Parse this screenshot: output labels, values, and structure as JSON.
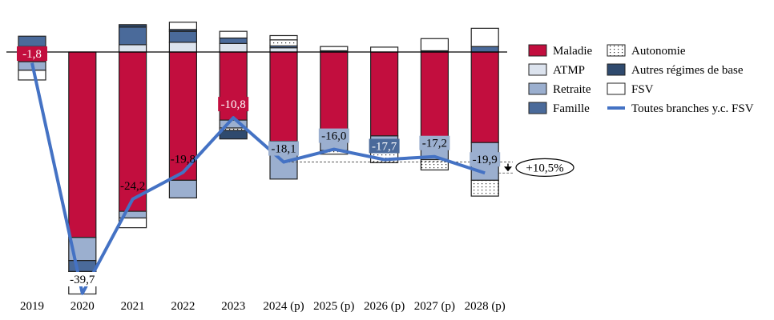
{
  "chart_data": {
    "type": "bar",
    "stacked": true,
    "categories": [
      "2019",
      "2020",
      "2021",
      "2022",
      "2023",
      "2024 (p)",
      "2025 (p)",
      "2026 (p)",
      "2027 (p)",
      "2028 (p)"
    ],
    "ylim": [
      -40,
      6
    ],
    "grid": false,
    "legend_position": "right",
    "series": [
      {
        "name": "Maladie",
        "color": "#C20E3E",
        "values": [
          -1.6,
          -30.5,
          -26.2,
          -21.1,
          -11.2,
          -14.7,
          -13.2,
          -13.8,
          -14.2,
          -14.9
        ]
      },
      {
        "name": "ATMP",
        "color": "#DCE3EE",
        "values": [
          0.9,
          0,
          1.2,
          1.6,
          1.4,
          0.7,
          0,
          0,
          0,
          0
        ]
      },
      {
        "name": "Retraite",
        "color": "#9BAFCF",
        "values": [
          -1.4,
          -3.8,
          -1.1,
          -2.9,
          -1.3,
          -6.2,
          -3.0,
          -2.4,
          -3.5,
          -6.2
        ]
      },
      {
        "name": "Famille",
        "color": "#4A6A9A",
        "values": [
          1.7,
          -1.8,
          2.9,
          1.8,
          0.9,
          0.3,
          0,
          0,
          0,
          0.9
        ]
      },
      {
        "name": "Autonomie",
        "color": "dotted",
        "values": [
          0,
          0,
          0,
          0,
          -0.4,
          1.0,
          -0.6,
          -2.0,
          -1.7,
          -2.6
        ]
      },
      {
        "name": "Autres régimes de base",
        "color": "#2F4A6E",
        "values": [
          0,
          -0.7,
          0.4,
          0.3,
          -1.4,
          0,
          0.2,
          0,
          0.2,
          0
        ]
      },
      {
        "name": "FSV",
        "color": "#FFFFFF",
        "values": [
          -1.6,
          -3.0,
          -1.6,
          1.2,
          1.1,
          0.7,
          0.7,
          0.8,
          2.0,
          3.0
        ]
      }
    ],
    "line": {
      "name": "Toutes branches y.c. FSV",
      "color": "#4472C4",
      "values": [
        -1.8,
        -39.7,
        -24.2,
        -19.8,
        -10.8,
        -18.1,
        -16.0,
        -17.7,
        -17.2,
        -19.9
      ]
    },
    "data_labels": [
      "-1,8",
      "-39,7",
      "-24,2",
      "-19,8",
      "-10,8",
      "-18,1",
      "-16,0",
      "-17,7",
      "-17,2",
      "-19,9"
    ],
    "annotation": {
      "text": "+10,5%",
      "from": "2024 (p)",
      "to": "2028 (p)"
    }
  },
  "legend": {
    "col1": [
      "Maladie",
      "ATMP",
      "Retraite",
      "Famille"
    ],
    "col2": [
      "Autonomie",
      "Autres régimes de base",
      "FSV",
      "Toutes branches y.c. FSV"
    ]
  }
}
